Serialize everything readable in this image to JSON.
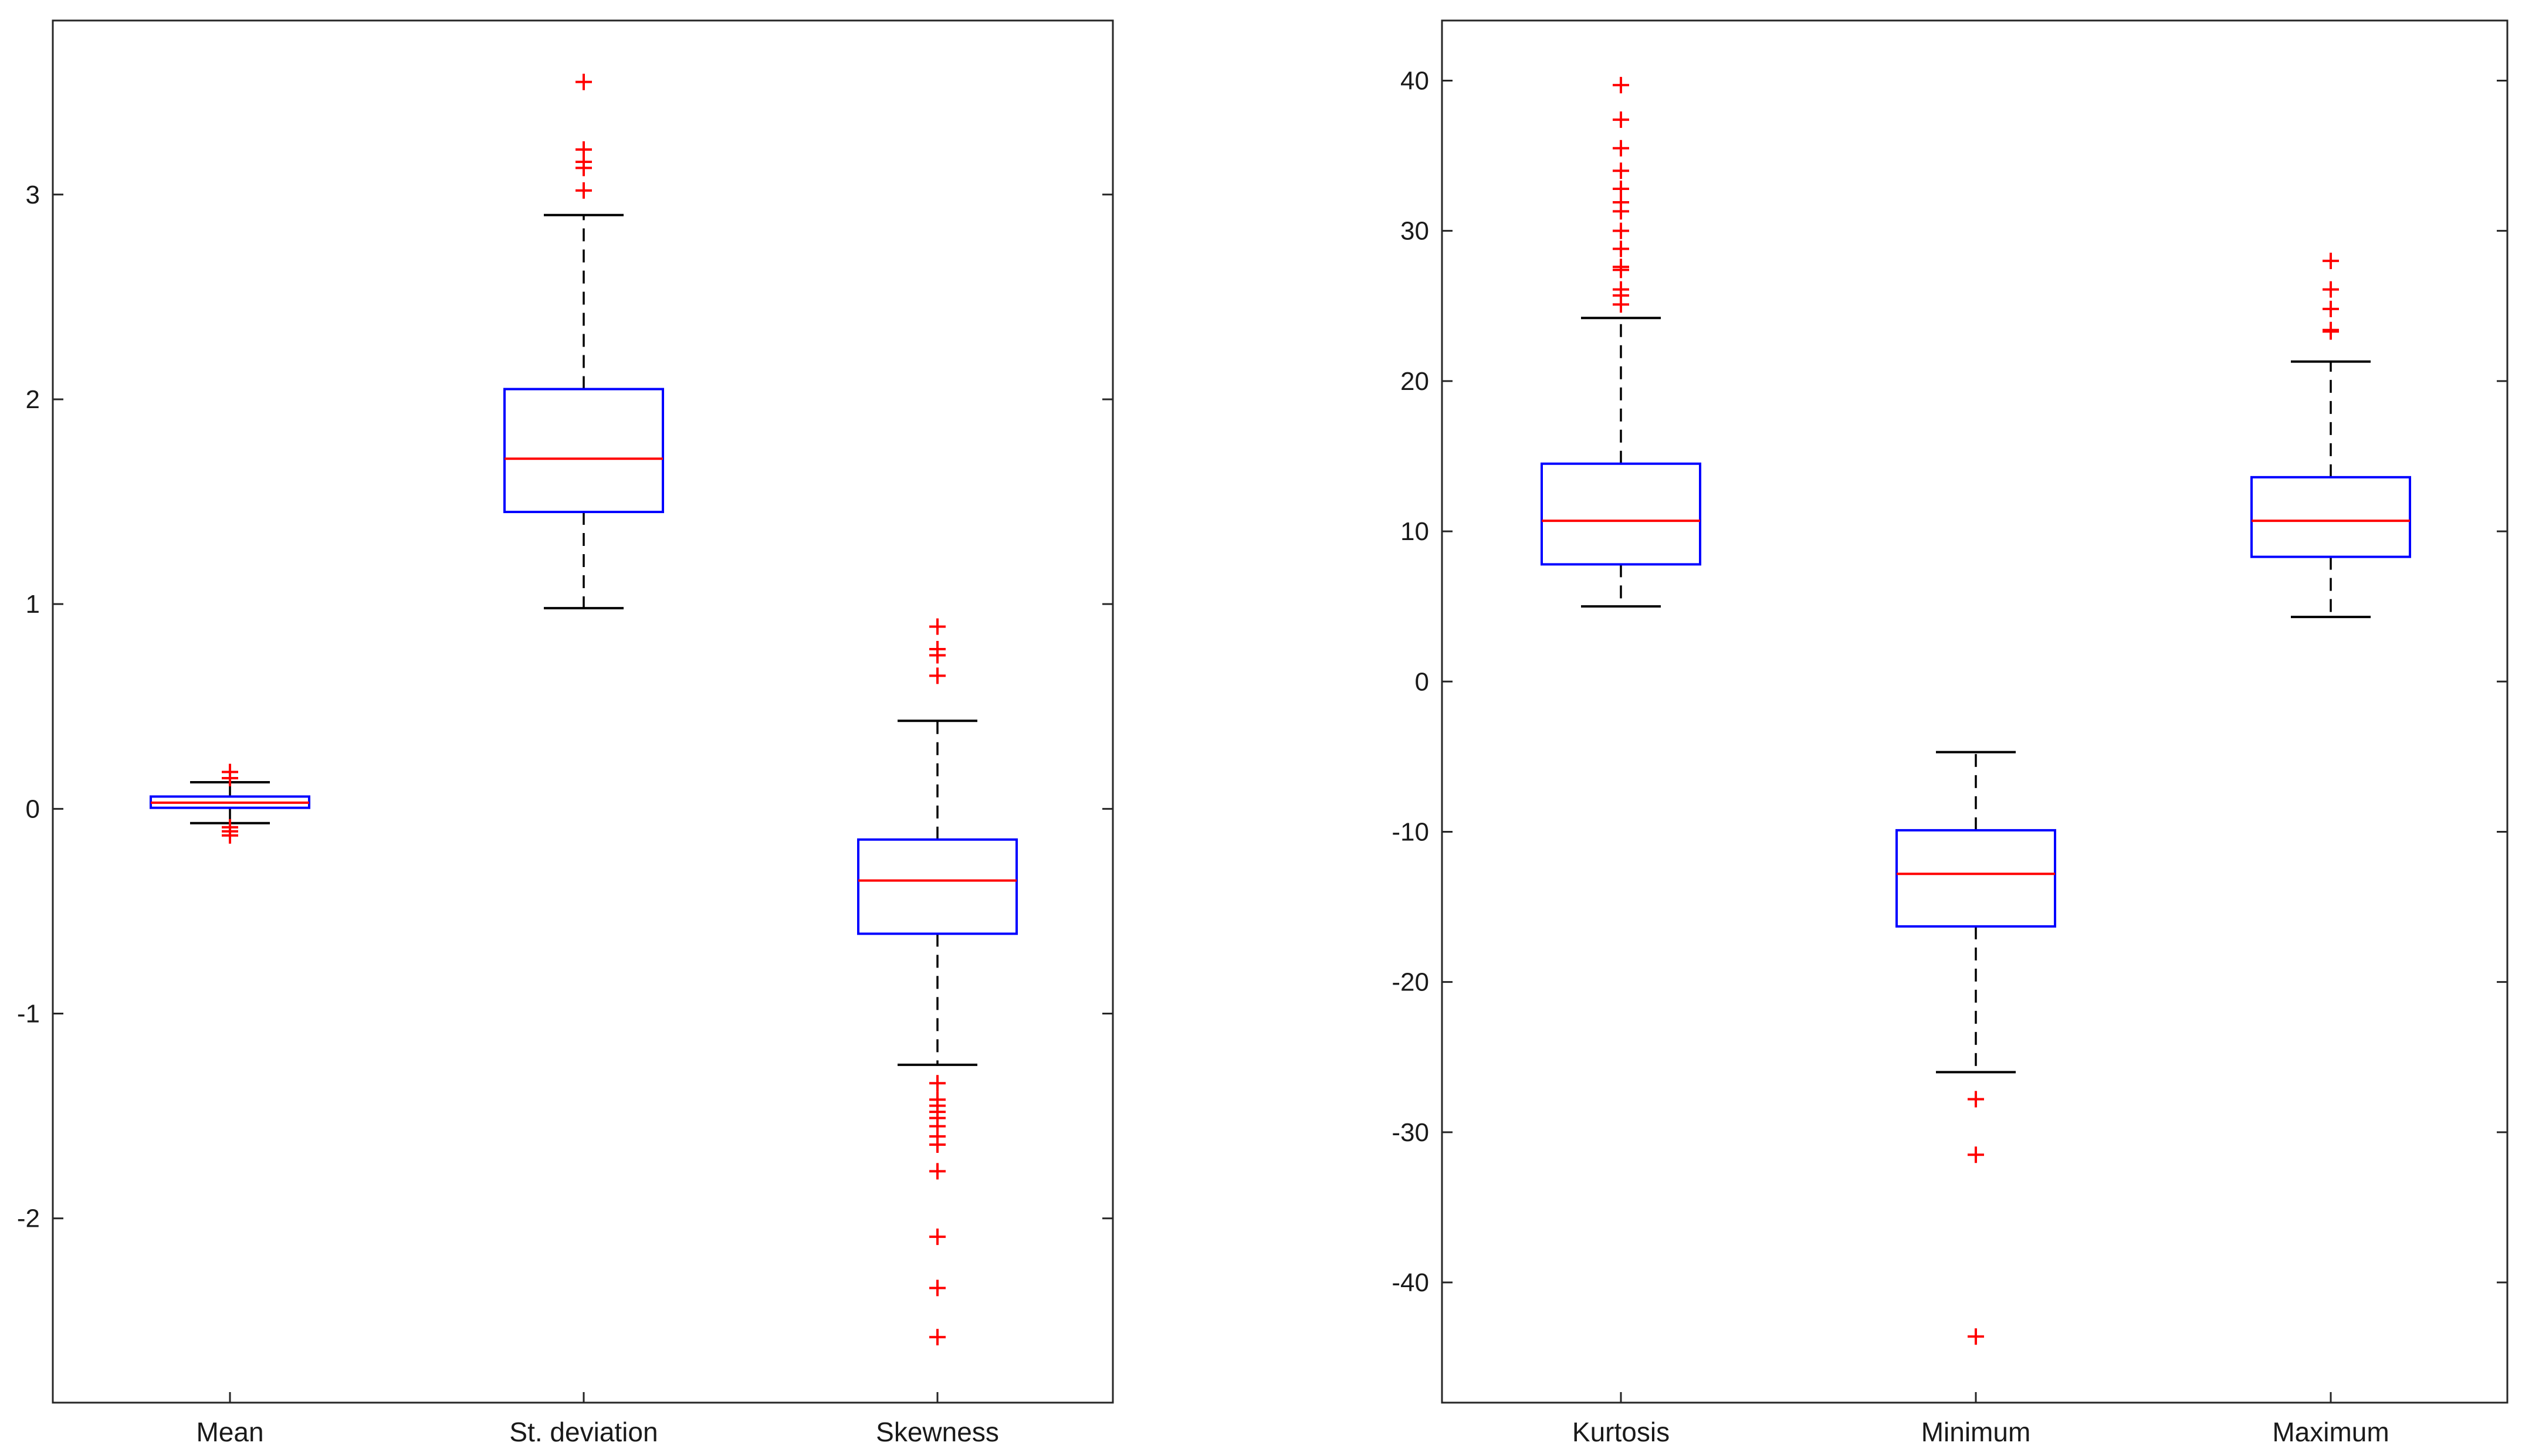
{
  "chart_data": [
    {
      "type": "boxplot",
      "title": "",
      "xlabel": "",
      "ylabel": "",
      "ylim": [
        -2.9,
        3.85
      ],
      "yticks": [
        -2,
        -1,
        0,
        1,
        2,
        3
      ],
      "yticklabels": [
        "-2",
        "-1",
        "0",
        "1",
        "2",
        "3"
      ],
      "colors": {
        "box": "#0000ff",
        "median": "#ff0000",
        "whisker": "#000000",
        "outlier": "#ff0000"
      },
      "categories": [
        "Mean",
        "St. deviation",
        "Skewness"
      ],
      "boxes": [
        {
          "label": "Mean",
          "whisker_low": -0.07,
          "q1": 0.005,
          "median": 0.03,
          "q3": 0.06,
          "whisker_high": 0.13,
          "outliers": [
            0.18,
            0.15,
            -0.09,
            -0.11,
            -0.13
          ]
        },
        {
          "label": "St. deviation",
          "whisker_low": 0.98,
          "q1": 1.45,
          "median": 1.71,
          "q3": 2.05,
          "whisker_high": 2.9,
          "outliers": [
            3.55,
            3.22,
            3.16,
            3.13,
            3.02
          ]
        },
        {
          "label": "Skewness",
          "whisker_low": -1.25,
          "q1": -0.61,
          "median": -0.35,
          "q3": -0.15,
          "whisker_high": 0.43,
          "outliers": [
            0.89,
            0.78,
            0.75,
            0.65,
            -1.34,
            -1.42,
            -1.45,
            -1.48,
            -1.51,
            -1.55,
            -1.6,
            -1.64,
            -1.77,
            -2.09,
            -2.34,
            -2.58
          ]
        }
      ]
    },
    {
      "type": "boxplot",
      "title": "",
      "xlabel": "",
      "ylabel": "",
      "ylim": [
        -48,
        44
      ],
      "yticks": [
        -40,
        -30,
        -20,
        -10,
        0,
        10,
        20,
        30,
        40
      ],
      "yticklabels": [
        "-40",
        "-30",
        "-20",
        "-10",
        "0",
        "10",
        "20",
        "30",
        "40"
      ],
      "colors": {
        "box": "#0000ff",
        "median": "#ff0000",
        "whisker": "#000000",
        "outlier": "#ff0000"
      },
      "categories": [
        "Kurtosis",
        "Minimum",
        "Maximum"
      ],
      "boxes": [
        {
          "label": "Kurtosis",
          "whisker_low": 5.0,
          "q1": 7.8,
          "median": 10.7,
          "q3": 14.5,
          "whisker_high": 24.2,
          "outliers": [
            39.7,
            37.4,
            35.5,
            34.0,
            32.8,
            31.9,
            31.3,
            30.0,
            28.8,
            27.6,
            27.4,
            26.1,
            25.7,
            25.1
          ]
        },
        {
          "label": "Minimum",
          "whisker_low": -26.0,
          "q1": -16.3,
          "median": -12.8,
          "q3": -9.9,
          "whisker_high": -4.7,
          "outliers": [
            -27.8,
            -31.5,
            -43.6
          ]
        },
        {
          "label": "Maximum",
          "whisker_low": 4.3,
          "q1": 8.3,
          "median": 10.7,
          "q3": 13.6,
          "whisker_high": 21.3,
          "outliers": [
            28.0,
            26.1,
            24.8,
            23.4,
            23.3
          ]
        }
      ]
    }
  ]
}
